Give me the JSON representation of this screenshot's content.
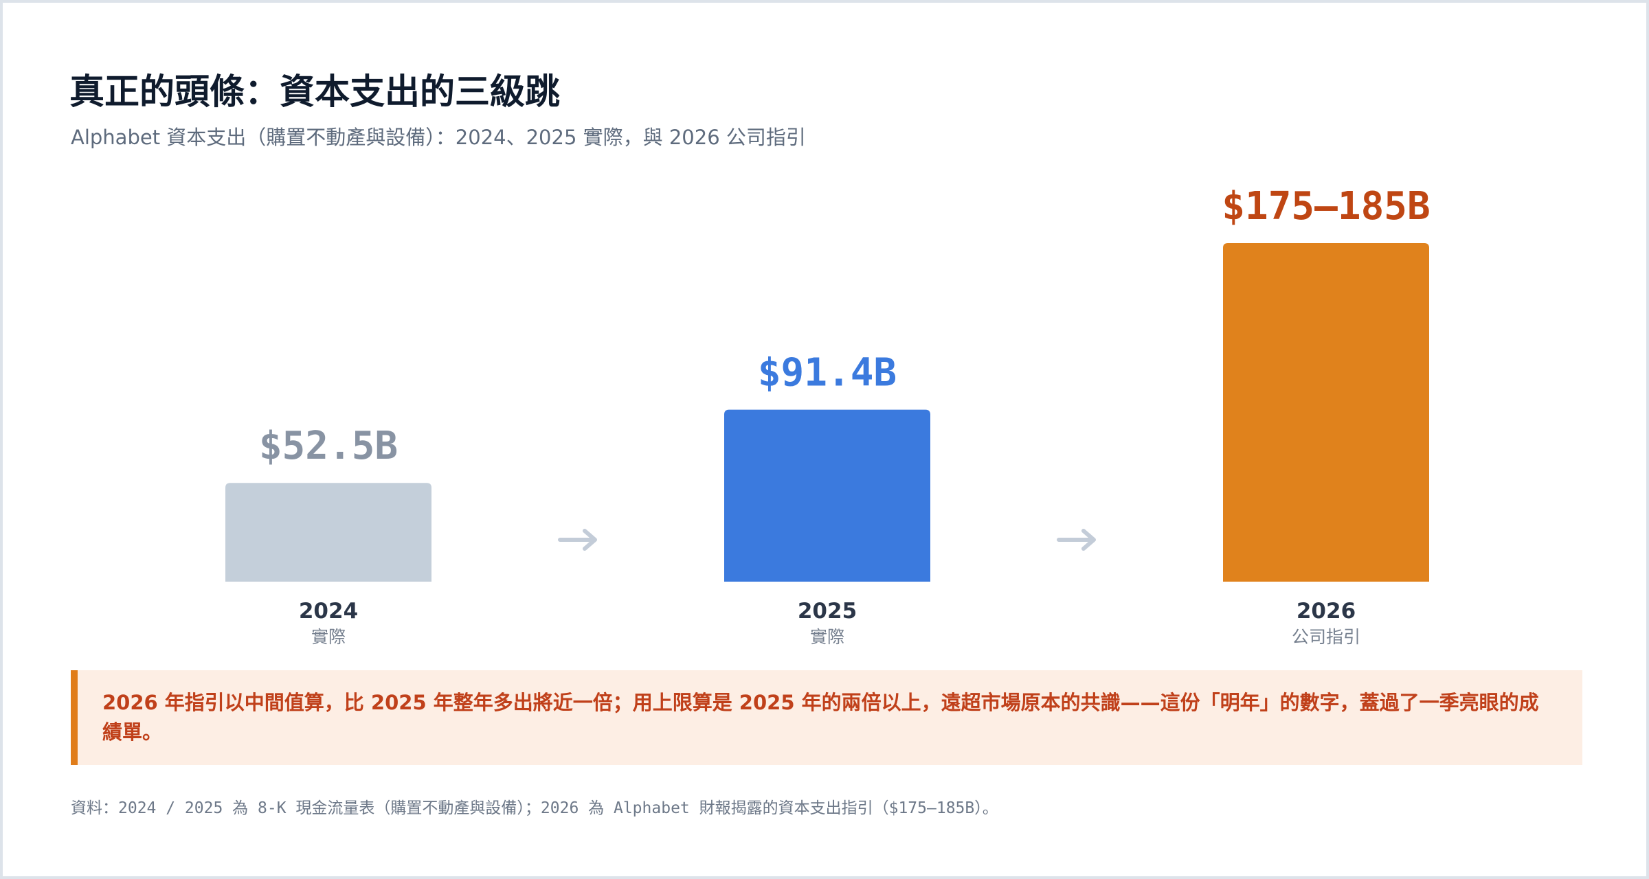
{
  "header": {
    "title": "真正的頭條：資本支出的三級跳",
    "subtitle": "Alphabet 資本支出（購置不動產與設備）：2024、2025 實際，與 2026 公司指引"
  },
  "chart_data": {
    "type": "bar",
    "categories": [
      "2024",
      "2025",
      "2026"
    ],
    "category_sublabels": [
      "實際",
      "實際",
      "公司指引"
    ],
    "values": [
      52.5,
      91.4,
      180
    ],
    "ranges": [
      null,
      null,
      [
        175,
        185
      ]
    ],
    "value_labels": [
      "$52.5B",
      "$91.4B",
      "$175–185B"
    ],
    "colors": [
      "#c4cfda",
      "#3b7ade",
      "#e0821c"
    ],
    "label_colors": [
      "#8893a3",
      "#3b7ade",
      "#bf4613"
    ],
    "separator_icon": "arrow-right-icon",
    "title": "",
    "xlabel": "",
    "ylabel": "",
    "ylim": [
      0,
      180
    ],
    "grid": false
  },
  "callout": {
    "text": "2026 年指引以中間值算，比 2025 年整年多出將近一倍；用上限算是 2025 年的兩倍以上，遠超市場原本的共識——這份「明年」的數字，蓋過了一季亮眼的成績單。"
  },
  "footnote": "資料：2024 / 2025 為 8-K 現金流量表（購置不動產與設備）；2026 為 Alphabet 財報揭露的資本支出指引（$175–185B）。"
}
